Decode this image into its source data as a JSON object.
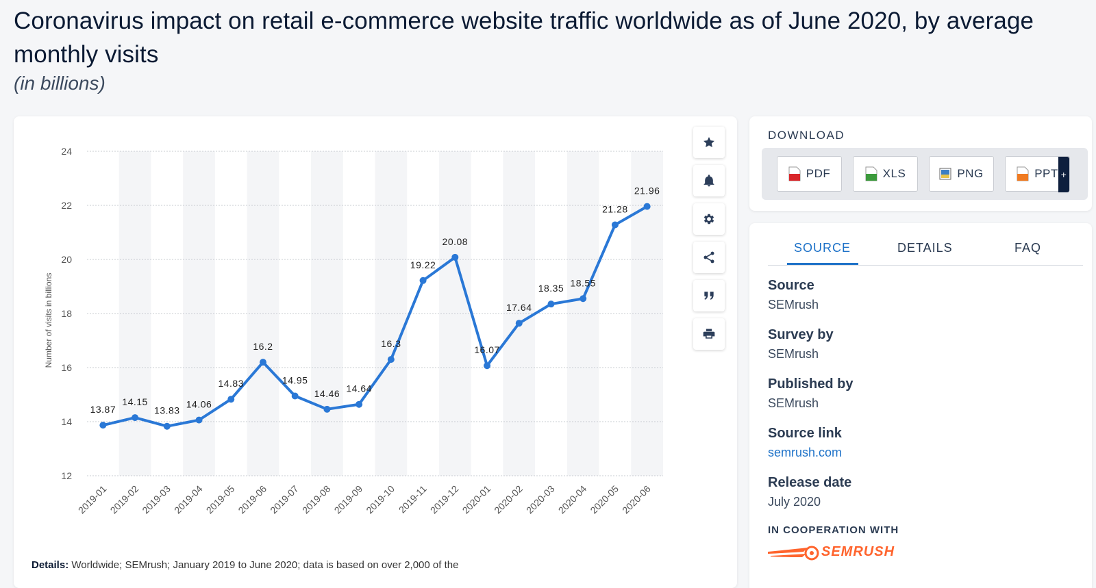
{
  "header": {
    "title": "Coronavirus impact on retail e-commerce website traffic worldwide as of June 2020, by average monthly visits",
    "subtitle": "(in billions)"
  },
  "chart_data": {
    "type": "line",
    "title": "Coronavirus impact on retail e-commerce website traffic worldwide as of June 2020, by average monthly visits",
    "subtitle": "(in billions)",
    "xlabel": "",
    "ylabel": "Number of visits in billions",
    "ylim": [
      12,
      24
    ],
    "yticks": [
      12,
      14,
      16,
      18,
      20,
      22,
      24
    ],
    "grid": true,
    "categories": [
      "2019-01",
      "2019-02",
      "2019-03",
      "2019-04",
      "2019-05",
      "2019-06",
      "2019-07",
      "2019-08",
      "2019-09",
      "2019-10",
      "2019-11",
      "2019-12",
      "2020-01",
      "2020-02",
      "2020-03",
      "2020-04",
      "2020-05",
      "2020-06"
    ],
    "series": [
      {
        "color": "#2a78d6",
        "values": [
          13.87,
          14.15,
          13.83,
          14.06,
          14.83,
          16.2,
          14.95,
          14.46,
          14.64,
          16.3,
          19.22,
          20.08,
          16.07,
          17.64,
          18.35,
          18.55,
          21.28,
          21.96
        ],
        "labels": [
          "13.87",
          "14.15",
          "13.83",
          "14.06",
          "14.83",
          "16.2",
          "14.95",
          "14.46",
          "14.64",
          "16.3",
          "19.22",
          "20.08",
          "16.07",
          "17.64",
          "18.35",
          "18.55",
          "21.28",
          "21.96"
        ]
      }
    ]
  },
  "details": {
    "label": "Details:",
    "text": "Worldwide; SEMrush; January 2019 to June 2020; data is based on over 2,000 of the"
  },
  "tools": [
    {
      "icon": "star-icon"
    },
    {
      "icon": "bell-icon"
    },
    {
      "icon": "gear-icon"
    },
    {
      "icon": "share-icon"
    },
    {
      "icon": "quote-icon"
    },
    {
      "icon": "print-icon"
    }
  ],
  "download": {
    "title": "DOWNLOAD",
    "buttons": [
      {
        "label": "PDF",
        "icon": "pdf-file-icon",
        "color": "#d9262a"
      },
      {
        "label": "XLS",
        "icon": "xls-file-icon",
        "color": "#3c9a3c"
      },
      {
        "label": "PNG",
        "icon": "png-file-icon",
        "color": "#3b7ec4"
      },
      {
        "label": "PPT",
        "icon": "ppt-file-icon",
        "color": "#f07b22"
      }
    ],
    "plus": "+"
  },
  "info": {
    "tabs": [
      "SOURCE",
      "DETAILS",
      "FAQ"
    ],
    "active_tab": "SOURCE",
    "source_label": "Source",
    "source_value": "SEMrush",
    "survey_label": "Survey by",
    "survey_value": "SEMrush",
    "published_label": "Published by",
    "published_value": "SEMrush",
    "link_label": "Source link",
    "link_value": "semrush.com",
    "release_label": "Release date",
    "release_value": "July 2020",
    "coop_label": "IN COOPERATION WITH",
    "coop_logo": "SEMRUSH"
  },
  "colors": {
    "accent": "#1e72c8",
    "line": "#2a78d6"
  }
}
